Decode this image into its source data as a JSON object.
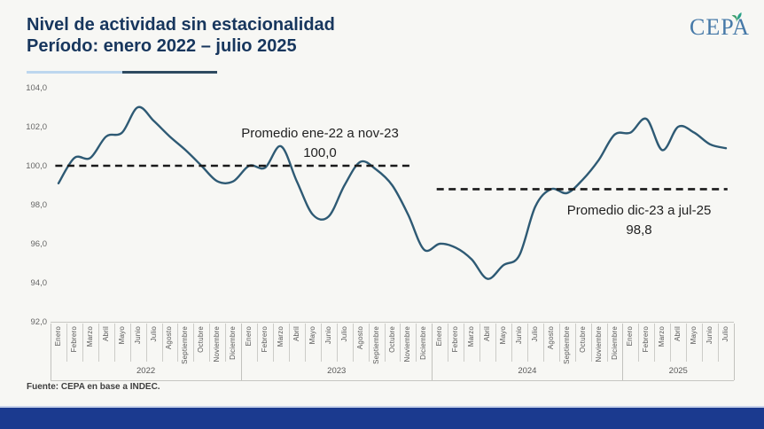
{
  "header": {
    "title_line1": "Nivel de actividad sin estacionalidad",
    "title_line2": "Período: enero 2022 – julio 2025",
    "logo_text": "CEPA"
  },
  "chart_data": {
    "type": "line",
    "title": "Nivel de actividad sin estacionalidad",
    "subtitle": "Período: enero 2022 – julio 2025",
    "ylim": [
      92,
      104
    ],
    "grid": false,
    "legend": false,
    "series_color": "#2E5A74",
    "yticks": [
      {
        "value": 104,
        "label": "104,0"
      },
      {
        "value": 102,
        "label": "102,0"
      },
      {
        "value": 100,
        "label": "100,0"
      },
      {
        "value": 98,
        "label": "98,0"
      },
      {
        "value": 96,
        "label": "96,0"
      },
      {
        "value": 94,
        "label": "94,0"
      },
      {
        "value": 92,
        "label": "92,0"
      }
    ],
    "year_groups": [
      {
        "year": "2022",
        "months": [
          "Enero",
          "Febrero",
          "Marzo",
          "Abril",
          "Mayo",
          "Junio",
          "Julio",
          "Agosto",
          "Septiembre",
          "Octubre",
          "Noviembre",
          "Diciembre"
        ],
        "values": [
          99.1,
          100.4,
          100.4,
          101.5,
          101.7,
          103.0,
          102.3,
          101.5,
          100.8,
          100.0,
          99.2,
          99.2
        ]
      },
      {
        "year": "2023",
        "months": [
          "Enero",
          "Febrero",
          "Marzo",
          "Abril",
          "Mayo",
          "Junio",
          "Julio",
          "Agosto",
          "Septiembre",
          "Octubre",
          "Noviembre",
          "Diciembre"
        ],
        "values": [
          100.0,
          99.9,
          101.0,
          99.2,
          97.5,
          97.4,
          99.0,
          100.2,
          99.8,
          99.0,
          97.5,
          95.7
        ]
      },
      {
        "year": "2024",
        "months": [
          "Enero",
          "Febrero",
          "Marzo",
          "Abril",
          "Mayo",
          "Junio",
          "Julio",
          "Agosto",
          "Septiembre",
          "Octubre",
          "Noviembre",
          "Diciembre"
        ],
        "values": [
          96.0,
          95.8,
          95.2,
          94.2,
          94.9,
          95.4,
          97.9,
          98.8,
          98.6,
          99.3,
          100.3,
          101.6
        ]
      },
      {
        "year": "2025",
        "months": [
          "Enero",
          "Febrero",
          "Marzo",
          "Abril",
          "Mayo",
          "Junio",
          "Julio"
        ],
        "values": [
          101.7,
          102.4,
          100.8,
          102.0,
          101.7,
          101.1,
          100.9
        ]
      }
    ],
    "averages": [
      {
        "label": "Promedio ene-22 a nov-23",
        "value_label": "100,0",
        "value": 100.0,
        "span": "ene-22 a nov-23"
      },
      {
        "label": "Promedio dic-23 a jul-25",
        "value_label": "98,8",
        "value": 98.8,
        "span": "dic-23 a jul-25"
      }
    ]
  },
  "footer": {
    "source": "Fuente: CEPA en base a INDEC."
  }
}
